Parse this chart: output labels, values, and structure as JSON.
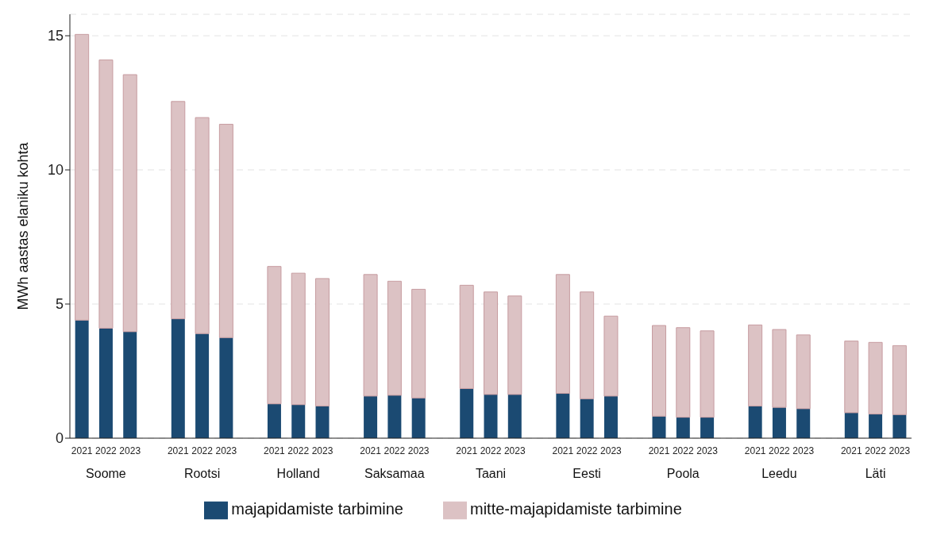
{
  "chart_data": {
    "type": "bar",
    "stacked": true,
    "ylabel": "MWh aastas elaniku kohta",
    "categories": [
      "2021",
      "2022",
      "2023",
      null,
      "2021",
      "2022",
      "2023",
      null,
      "2021",
      "2022",
      "2023",
      null,
      "2021",
      "2022",
      "2023",
      null,
      "2021",
      "2022",
      "2023",
      null,
      "2021",
      "2022",
      "2023",
      null,
      "2021",
      "2022",
      "2023",
      null,
      "2021",
      "2022",
      "2023",
      null,
      "2021",
      "2022",
      "2023"
    ],
    "annotations": [
      "Soome",
      "Rootsi",
      "Holland",
      "Saksamaa",
      "Taani",
      "Eesti",
      "Poola",
      "Leedu",
      "Läti"
    ],
    "series": [
      {
        "name": "majapidamiste tarbimine",
        "color": "#1b4a72",
        "values": [
          4.4,
          4.1,
          3.97,
          null,
          4.45,
          3.9,
          3.75,
          null,
          1.28,
          1.25,
          1.2,
          null,
          1.57,
          1.6,
          1.5,
          null,
          1.85,
          1.63,
          1.63,
          null,
          1.67,
          1.47,
          1.57,
          null,
          0.82,
          0.78,
          0.78,
          null,
          1.2,
          1.15,
          1.1,
          null,
          0.95,
          0.9,
          0.88
        ]
      },
      {
        "name": "mitte-majapidamiste tarbimine",
        "color": "#dcc2c4",
        "values": [
          10.65,
          10.0,
          9.58,
          null,
          8.1,
          8.05,
          7.95,
          null,
          5.12,
          4.9,
          4.75,
          null,
          4.53,
          4.25,
          4.05,
          null,
          3.85,
          3.82,
          3.67,
          null,
          4.43,
          3.98,
          2.98,
          null,
          3.38,
          3.34,
          3.22,
          null,
          3.02,
          2.9,
          2.75,
          null,
          2.67,
          2.67,
          2.57
        ]
      }
    ],
    "ylim": [
      0,
      15.8
    ],
    "yticks": [
      0,
      5,
      10,
      15
    ],
    "grid": "y",
    "legend": "bottom"
  }
}
